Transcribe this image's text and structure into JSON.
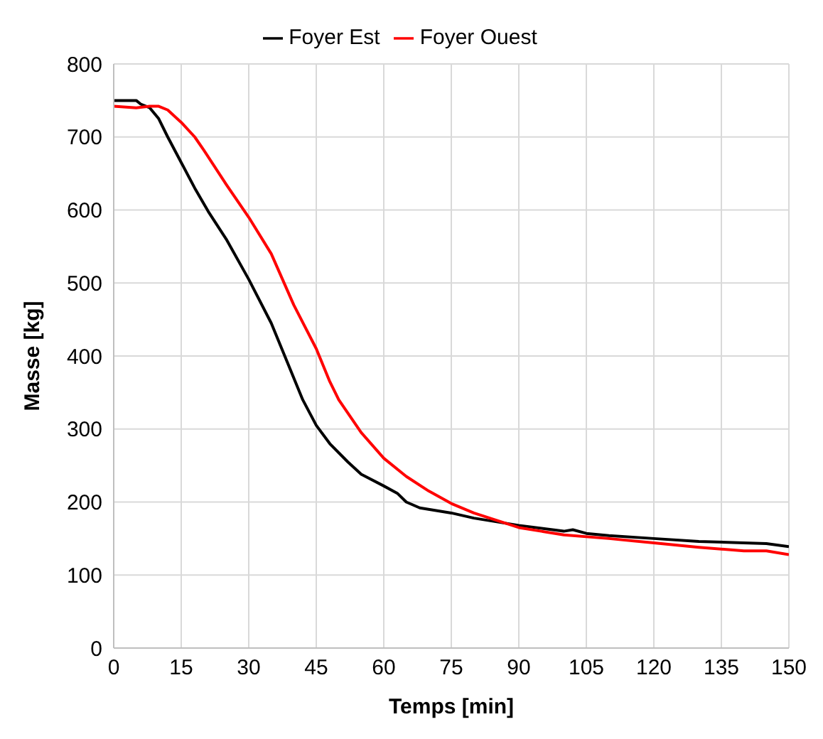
{
  "chart_data": {
    "type": "line",
    "xlabel": "Temps [min]",
    "ylabel": "Masse [kg]",
    "xlim": [
      0,
      150
    ],
    "xticks": [
      0,
      15,
      30,
      45,
      60,
      75,
      90,
      105,
      120,
      135,
      150
    ],
    "ylim": [
      0,
      800
    ],
    "yticks": [
      0,
      100,
      200,
      300,
      400,
      500,
      600,
      700,
      800
    ],
    "grid": true,
    "legend": "top",
    "marker": "none",
    "line_style": "solid",
    "series": [
      {
        "name": "Foyer Est",
        "color": "#000000",
        "x": [
          0,
          5,
          6,
          8,
          10,
          12,
          15,
          18,
          21,
          25,
          30,
          35,
          38,
          42,
          45,
          48,
          52,
          55,
          60,
          63,
          65,
          68,
          75,
          80,
          90,
          100,
          102,
          105,
          110,
          120,
          130,
          140,
          145,
          150
        ],
        "values": [
          750,
          750,
          745,
          740,
          725,
          700,
          665,
          630,
          598,
          560,
          505,
          445,
          400,
          340,
          305,
          280,
          255,
          238,
          222,
          212,
          200,
          192,
          185,
          178,
          168,
          160,
          162,
          157,
          154,
          150,
          146,
          144,
          143,
          139
        ]
      },
      {
        "name": "Foyer Ouest",
        "color": "#ff0000",
        "x": [
          0,
          5,
          8,
          10,
          12,
          15,
          18,
          20,
          25,
          30,
          35,
          40,
          45,
          48,
          50,
          55,
          60,
          65,
          70,
          75,
          80,
          85,
          90,
          95,
          100,
          110,
          120,
          130,
          140,
          145,
          150
        ],
        "values": [
          742,
          740,
          742,
          742,
          737,
          720,
          700,
          682,
          635,
          590,
          540,
          470,
          410,
          365,
          340,
          295,
          260,
          235,
          215,
          198,
          185,
          175,
          165,
          160,
          155,
          150,
          144,
          138,
          133,
          133,
          128
        ]
      }
    ]
  }
}
